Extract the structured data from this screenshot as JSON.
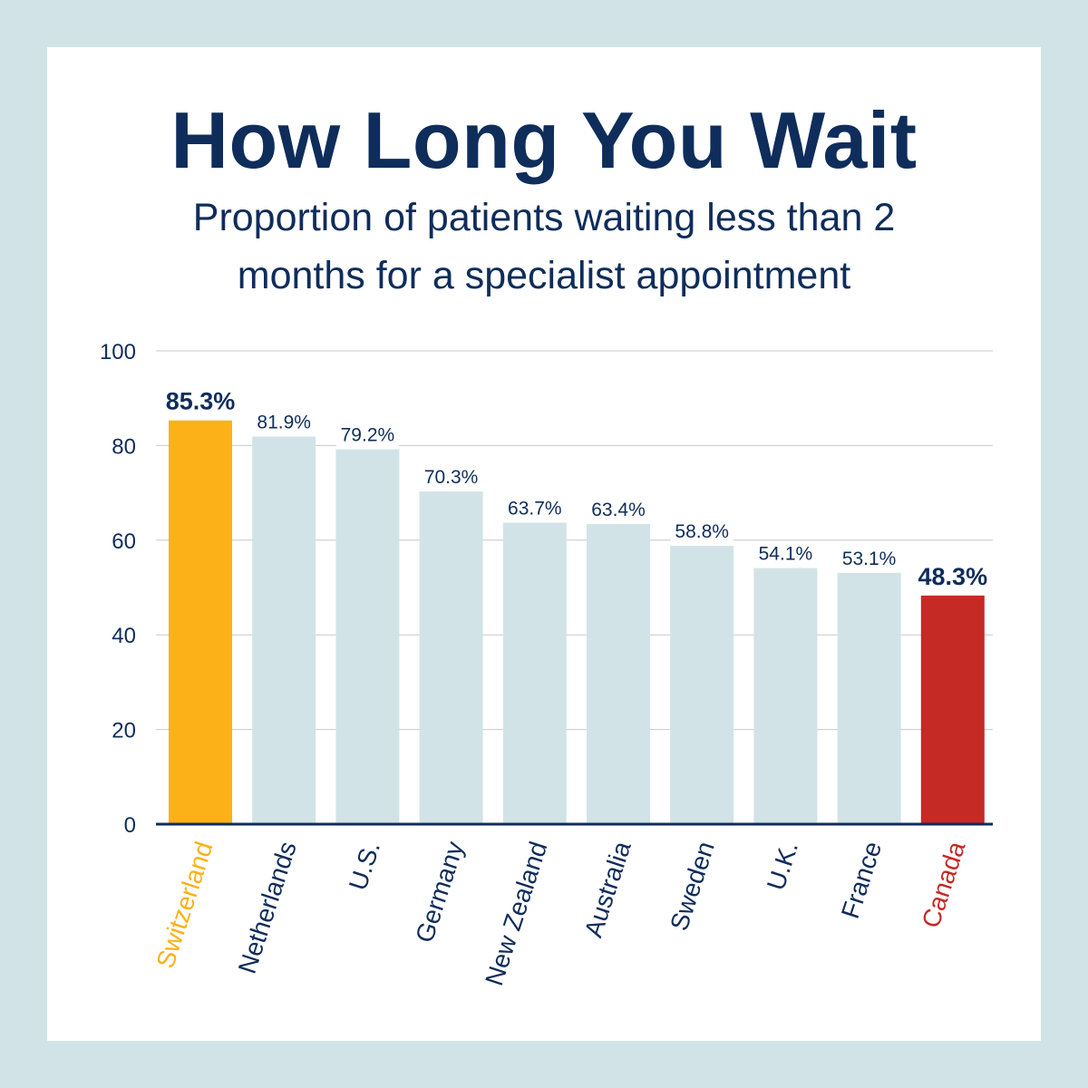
{
  "colors": {
    "background": "#d2e3e7",
    "panel": "#ffffff",
    "text": "#0f2d5b",
    "bar_default": "#d2e3e7",
    "bar_highlight_top": "#fbb117",
    "bar_highlight_bottom": "#c52a25",
    "gridline": "#c8c8c8",
    "axis": "#0f2d5b"
  },
  "chart_data": {
    "type": "bar",
    "title": "How Long You Wait",
    "subtitle_lines": [
      "Proportion of patients waiting less than 2",
      "months for a specialist appointment"
    ],
    "xlabel": "",
    "ylabel": "",
    "ylim": [
      0,
      100
    ],
    "yticks": [
      0,
      20,
      40,
      60,
      80,
      100
    ],
    "grid": true,
    "categories": [
      "Switzerland",
      "Netherlands",
      "U.S.",
      "Germany",
      "New Zealand",
      "Australia",
      "Sweden",
      "U.K.",
      "France",
      "Canada"
    ],
    "values": [
      85.3,
      81.9,
      79.2,
      70.3,
      63.7,
      63.4,
      58.8,
      54.1,
      53.1,
      48.3
    ],
    "data_labels": [
      "85.3%",
      "81.9%",
      "79.2%",
      "70.3%",
      "63.7%",
      "63.4%",
      "58.8%",
      "54.1%",
      "53.1%",
      "48.3%"
    ],
    "highlights": {
      "Switzerland": "top",
      "Canada": "bottom"
    }
  }
}
